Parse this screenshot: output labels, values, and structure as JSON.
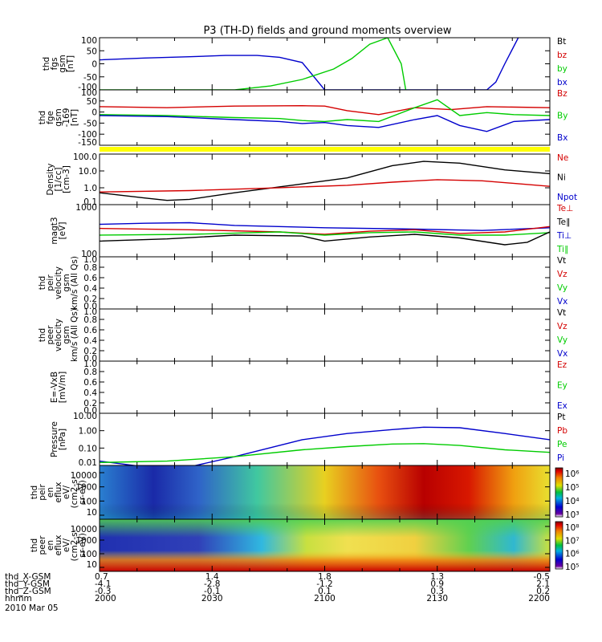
{
  "title": "P3 (TH-D) fields and ground moments overview",
  "colors": {
    "black": "#000000",
    "red": "#d40000",
    "green": "#00cc00",
    "blue": "#0000cc",
    "yellow": "#ffff00"
  },
  "chart_data": {
    "type": "line",
    "x_time": [
      "2000",
      "2030",
      "2100",
      "2130",
      "2200"
    ],
    "x_range": [
      "2000",
      "2200"
    ],
    "panels": [
      {
        "id": "fgs",
        "ylabel": [
          "thd",
          "fgs",
          "gsm",
          "[nT]"
        ],
        "ylim": [
          -100,
          100
        ],
        "yticks": [
          "100",
          "50",
          "0",
          "-50",
          "-100"
        ],
        "legend": [
          {
            "name": "Bt",
            "color": "black"
          },
          {
            "name": "bz",
            "color": "red"
          },
          {
            "name": "by",
            "color": "green"
          },
          {
            "name": "bx",
            "color": "blue"
          }
        ],
        "series": [
          {
            "name": "bx",
            "color": "blue",
            "x": [
              0,
              0.1,
              0.2,
              0.28,
              0.35,
              0.4,
              0.45,
              0.5,
              0.86,
              0.88,
              0.9,
              0.93
            ],
            "y": [
              15,
              22,
              27,
              32,
              32,
              25,
              5,
              -100,
              -100,
              -70,
              0,
              100
            ]
          },
          {
            "name": "by",
            "color": "green",
            "x": [
              0,
              0.3,
              0.38,
              0.45,
              0.52,
              0.56,
              0.6,
              0.64,
              0.67,
              0.68
            ],
            "y": [
              -100,
              -100,
              -85,
              -60,
              -20,
              20,
              75,
              100,
              0,
              -100
            ]
          }
        ]
      },
      {
        "id": "fge",
        "ylabel": [
          "thd",
          "fge",
          "gsm",
          "-169",
          "[nT]"
        ],
        "ylim": [
          -170,
          110
        ],
        "yticks": [
          "100",
          "50",
          "0",
          "-50",
          "-100",
          "-150"
        ],
        "legend": [
          {
            "name": "Bz",
            "color": "red"
          },
          {
            "name": "By",
            "color": "green"
          },
          {
            "name": "Bx",
            "color": "blue"
          }
        ],
        "series": [
          {
            "name": "Bz",
            "color": "red",
            "x": [
              0,
              0.15,
              0.3,
              0.45,
              0.5,
              0.55,
              0.62,
              0.7,
              0.78,
              0.86,
              1
            ],
            "y": [
              25,
              20,
              28,
              30,
              28,
              5,
              -15,
              20,
              10,
              25,
              20
            ]
          },
          {
            "name": "By",
            "color": "green",
            "x": [
              0,
              0.15,
              0.3,
              0.4,
              0.45,
              0.5,
              0.55,
              0.62,
              0.7,
              0.75,
              0.8,
              0.86,
              0.92,
              1
            ],
            "y": [
              -15,
              -20,
              -30,
              -35,
              -45,
              -50,
              -40,
              -50,
              20,
              60,
              -20,
              -5,
              -15,
              -20
            ]
          },
          {
            "name": "Bx",
            "color": "blue",
            "x": [
              0,
              0.15,
              0.3,
              0.4,
              0.45,
              0.5,
              0.55,
              0.62,
              0.7,
              0.75,
              0.8,
              0.86,
              0.92,
              1
            ],
            "y": [
              -20,
              -25,
              -40,
              -50,
              -60,
              -55,
              -70,
              -80,
              -40,
              -20,
              -70,
              -100,
              -50,
              -40
            ]
          }
        ]
      },
      {
        "id": "density",
        "ylabel": [
          "Density",
          "[1/cc]",
          "[cm-3]"
        ],
        "ylim_log": [
          0.05,
          200
        ],
        "yticks": [
          "100.0",
          "10.0",
          "1.0",
          "0.1"
        ],
        "legend": [
          {
            "name": "Ne",
            "color": "red"
          },
          {
            "name": "Ni",
            "color": "black"
          },
          {
            "name": "Npot",
            "color": "blue"
          }
        ],
        "series": [
          {
            "name": "Ni",
            "color": "black",
            "x": [
              0,
              0.1,
              0.15,
              0.2,
              0.3,
              0.45,
              0.55,
              0.65,
              0.72,
              0.8,
              0.9,
              1
            ],
            "y": [
              0.35,
              0.15,
              0.1,
              0.12,
              0.35,
              1.5,
              4,
              30,
              60,
              45,
              15,
              8
            ]
          },
          {
            "name": "Ne",
            "color": "red",
            "x": [
              0,
              0.2,
              0.4,
              0.55,
              0.65,
              0.75,
              0.85,
              1
            ],
            "y": [
              0.4,
              0.5,
              0.8,
              1.2,
              2,
              3,
              2.5,
              1
            ]
          }
        ]
      },
      {
        "id": "magt3",
        "ylabel": [
          "magt3",
          "[eV]"
        ],
        "ylim_log": [
          100,
          1000
        ],
        "yticks": [
          "1000",
          "100"
        ],
        "legend": [
          {
            "name": "Te⊥",
            "color": "red"
          },
          {
            "name": "Te∥",
            "color": "black"
          },
          {
            "name": "Ti⊥",
            "color": "blue"
          },
          {
            "name": "Ti∥",
            "color": "green"
          }
        ],
        "series": [
          {
            "name": "Ti⊥",
            "color": "blue",
            "x": [
              0,
              0.1,
              0.2,
              0.3,
              0.5,
              0.7,
              0.85,
              1
            ],
            "y": [
              420,
              440,
              450,
              400,
              360,
              340,
              320,
              360
            ]
          },
          {
            "name": "Te⊥",
            "color": "red",
            "x": [
              0,
              0.2,
              0.4,
              0.5,
              0.6,
              0.7,
              0.8,
              0.9,
              1
            ],
            "y": [
              350,
              330,
              300,
              270,
              310,
              330,
              280,
              300,
              380
            ]
          },
          {
            "name": "Ti∥",
            "color": "green",
            "x": [
              0,
              0.2,
              0.4,
              0.5,
              0.6,
              0.7,
              0.8,
              0.9,
              1
            ],
            "y": [
              260,
              270,
              300,
              260,
              290,
              300,
              260,
              260,
              290
            ]
          },
          {
            "name": "Te∥",
            "color": "black",
            "x": [
              0,
              0.15,
              0.3,
              0.45,
              0.5,
              0.6,
              0.7,
              0.8,
              0.9,
              0.95,
              1
            ],
            "y": [
              200,
              220,
              260,
              250,
              200,
              240,
              270,
              230,
              170,
              190,
              300
            ]
          }
        ]
      },
      {
        "id": "peir",
        "ylabel": [
          "thd",
          "peir",
          "velocity",
          "gsm",
          "km/s (All Qs)"
        ],
        "ylim": [
          0,
          1
        ],
        "yticks": [
          "1.0",
          "0.8",
          "0.6",
          "0.4",
          "0.2",
          "0.0"
        ],
        "legend": [
          {
            "name": "Vt",
            "color": "black"
          },
          {
            "name": "Vz",
            "color": "red"
          },
          {
            "name": "Vy",
            "color": "green"
          },
          {
            "name": "Vx",
            "color": "blue"
          }
        ],
        "series": []
      },
      {
        "id": "peer",
        "ylabel": [
          "thd",
          "peer",
          "velocity",
          "gsm",
          "km/s (All Qs)"
        ],
        "ylim": [
          0,
          1
        ],
        "yticks": [
          "1.0",
          "0.8",
          "0.6",
          "0.4",
          "0.2",
          "0.0"
        ],
        "legend": [
          {
            "name": "Vt",
            "color": "black"
          },
          {
            "name": "Vz",
            "color": "red"
          },
          {
            "name": "Vy",
            "color": "green"
          },
          {
            "name": "Vx",
            "color": "blue"
          }
        ],
        "series": []
      },
      {
        "id": "efield",
        "ylabel": [
          "E=-VxB",
          "[mV/m]"
        ],
        "ylim": [
          0,
          1
        ],
        "yticks": [
          "1.0",
          "0.8",
          "0.6",
          "0.4",
          "0.2",
          "0.0"
        ],
        "legend": [
          {
            "name": "Ez",
            "color": "red"
          },
          {
            "name": "Ey",
            "color": "green"
          },
          {
            "name": "Ex",
            "color": "blue"
          }
        ],
        "series": []
      },
      {
        "id": "pressure",
        "ylabel": [
          "Pressure",
          "[nPa]"
        ],
        "ylim_log": [
          0.005,
          20
        ],
        "yticks": [
          "10.00",
          "1.00",
          "0.10",
          "0.01"
        ],
        "legend": [
          {
            "name": "Pt",
            "color": "black"
          },
          {
            "name": "Pb",
            "color": "red"
          },
          {
            "name": "Pe",
            "color": "green"
          },
          {
            "name": "Pi",
            "color": "blue"
          }
        ],
        "series": [
          {
            "name": "Pi",
            "color": "blue",
            "x": [
              0,
              0.1,
              0.15,
              0.2,
              0.3,
              0.45,
              0.55,
              0.65,
              0.72,
              0.8,
              0.9,
              1
            ],
            "y": [
              0.01,
              0.004,
              0.003,
              0.004,
              0.02,
              0.3,
              0.8,
              1.5,
              2.2,
              2,
              0.8,
              0.3
            ]
          },
          {
            "name": "Pe",
            "color": "green",
            "x": [
              0,
              0.15,
              0.3,
              0.45,
              0.55,
              0.65,
              0.72,
              0.8,
              0.9,
              1
            ],
            "y": [
              0.008,
              0.01,
              0.02,
              0.06,
              0.1,
              0.15,
              0.16,
              0.12,
              0.06,
              0.04
            ]
          }
        ]
      }
    ],
    "spectrograms": [
      {
        "id": "peir_en",
        "ylabel": [
          "thd",
          "peir",
          "en",
          "eflux",
          "eV/",
          "(cm2-s-",
          "sr-eV)"
        ],
        "yticks": [
          "10000",
          "1000",
          "100",
          "10"
        ],
        "colorbar_ticks": [
          "10⁶",
          "10⁵",
          "10⁴",
          "10³"
        ]
      },
      {
        "id": "peer_en",
        "ylabel": [
          "thd",
          "peer",
          "en",
          "eflux",
          "eV/",
          "(cm2-s-",
          "sr-eV)"
        ],
        "yticks": [
          "10000",
          "1000",
          "100",
          "10"
        ],
        "colorbar_ticks": [
          "10⁸",
          "10⁷",
          "10⁶",
          "10⁵"
        ]
      }
    ],
    "orbit_rows": [
      {
        "label": "thd_X-GSM",
        "values": [
          "0.7",
          "1.4",
          "1.8",
          "1.3",
          "-0.5"
        ]
      },
      {
        "label": "thd_Y-GSM",
        "values": [
          "-4.1",
          "-2.8",
          "-1.2",
          "0.9",
          "2.1"
        ]
      },
      {
        "label": "thd_Z-GSM",
        "values": [
          "-0.3",
          "-0.1",
          "0.1",
          "0.3",
          "0.2"
        ]
      },
      {
        "label": "hhmm",
        "values": [
          "2000",
          "2030",
          "2100",
          "2130",
          "2200"
        ]
      }
    ],
    "date": "2010 Mar 05"
  }
}
